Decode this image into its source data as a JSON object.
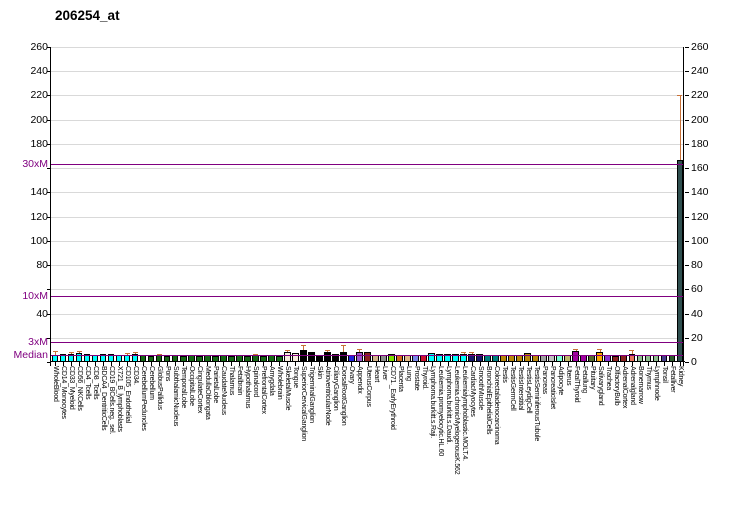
{
  "chart_data": {
    "type": "bar",
    "title": "206254_at",
    "xlabel": "",
    "ylabel": "",
    "ylim": [
      0,
      260
    ],
    "ytick_step": 20,
    "grid": true,
    "threshold_color": "#800080",
    "error_color": "#c87137",
    "thresholds": [
      {
        "label": "30xM",
        "value": 163.5
      },
      {
        "label": "10xM",
        "value": 54.5
      },
      {
        "label": "3xM",
        "value": 16.4
      },
      {
        "label": "Median",
        "value": 5.45
      }
    ],
    "y_axis_left": [
      {
        "label": "260",
        "value": 260,
        "color": "#000000"
      },
      {
        "label": "240",
        "value": 240,
        "color": "#000000"
      },
      {
        "label": "220",
        "value": 220,
        "color": "#000000"
      },
      {
        "label": "200",
        "value": 200,
        "color": "#000000"
      },
      {
        "label": "180",
        "value": 180,
        "color": "#000000"
      },
      {
        "label": "30xM",
        "value": 163.5,
        "color": "#800080"
      },
      {
        "label": "140",
        "value": 140,
        "color": "#000000"
      },
      {
        "label": "120",
        "value": 120,
        "color": "#000000"
      },
      {
        "label": "100",
        "value": 100,
        "color": "#000000"
      },
      {
        "label": "80",
        "value": 80,
        "color": "#000000"
      },
      {
        "label": "10xM",
        "value": 54.5,
        "color": "#800080"
      },
      {
        "label": "40",
        "value": 40,
        "color": "#000000"
      },
      {
        "label": "3xM",
        "value": 16.4,
        "color": "#800080"
      },
      {
        "label": "Median",
        "value": 5.45,
        "color": "#800080"
      }
    ],
    "y_axis_right": [
      0,
      20,
      40,
      60,
      80,
      100,
      120,
      140,
      160,
      180,
      200,
      220,
      240,
      260
    ],
    "points": [
      {
        "label": "WholeBlood",
        "value": 6,
        "hi": 9,
        "color": "#00ffff"
      },
      {
        "label": "CD14_Monocytes",
        "value": 7,
        "color": "#00ffff"
      },
      {
        "label": "CD33_Myeloid",
        "value": 7,
        "hi": 8.5,
        "color": "#00ffff"
      },
      {
        "label": "CD56_NKCells",
        "value": 7.5,
        "hi": 9,
        "color": "#00ffff"
      },
      {
        "label": "CD4_Tcells",
        "value": 6.5,
        "color": "#00ffff"
      },
      {
        "label": "CD8_Tcells",
        "value": 6,
        "color": "#00ffff"
      },
      {
        "label": "BDCA4_DentriticCells",
        "value": 6.5,
        "color": "#00ffff"
      },
      {
        "label": "CD19_BCells.neg._sel.",
        "value": 6.5,
        "color": "#00ffff"
      },
      {
        "label": "X721_B_lymphoblasts",
        "value": 6,
        "color": "#00ffff"
      },
      {
        "label": "CD105_Endothelial",
        "value": 6,
        "hi": 7.5,
        "color": "#00ffff"
      },
      {
        "label": "CD34.",
        "value": 7,
        "hi": 8.5,
        "color": "#00ffff"
      },
      {
        "label": "CerebellumPeduncles",
        "value": 5.5,
        "color": "#156815"
      },
      {
        "label": "Cerebellum",
        "value": 5,
        "color": "#156815"
      },
      {
        "label": "GlobusPallidus",
        "value": 5.5,
        "hi": 6.5,
        "color": "#156815"
      },
      {
        "label": "Pons",
        "value": 5,
        "color": "#156815"
      },
      {
        "label": "SubthalamicNucleus",
        "value": 5.5,
        "color": "#156815"
      },
      {
        "label": "TemporalLobe",
        "value": 5,
        "color": "#156815"
      },
      {
        "label": "OccipitalLobe",
        "value": 5.5,
        "color": "#156815"
      },
      {
        "label": "CingulateCortex",
        "value": 5,
        "color": "#156815"
      },
      {
        "label": "MedullaOblongata",
        "value": 5.5,
        "color": "#156815"
      },
      {
        "label": "ParietalLobe",
        "value": 5,
        "color": "#156815"
      },
      {
        "label": "CaudateNucleus",
        "value": 5.5,
        "color": "#156815"
      },
      {
        "label": "Thalamus",
        "value": 5,
        "color": "#156815"
      },
      {
        "label": "Fetalbrain",
        "value": 5.5,
        "color": "#156815"
      },
      {
        "label": "Hypothalamus",
        "value": 5,
        "color": "#156815"
      },
      {
        "label": "Spinalcord",
        "value": 5.5,
        "hi": 6.5,
        "color": "#156815"
      },
      {
        "label": "PrefrontalCortex",
        "value": 5,
        "color": "#156815"
      },
      {
        "label": "Amygdala",
        "value": 5.5,
        "color": "#156815"
      },
      {
        "label": "Wholebrain",
        "value": 5,
        "color": "#156815"
      },
      {
        "label": "SkeletalMuscle",
        "value": 8,
        "hi": 9.5,
        "color": "#f7ebdd"
      },
      {
        "label": "Tongue",
        "value": 7.5,
        "color": "#f7ebdd"
      },
      {
        "label": "SuperiorCervicalGanglion",
        "value": 10,
        "hi": 14,
        "color": "#000000"
      },
      {
        "label": "TrigeminalGanglion",
        "value": 8.5,
        "color": "#000000"
      },
      {
        "label": "Skin",
        "value": 6,
        "color": "#000000"
      },
      {
        "label": "AtrioventricularNode",
        "value": 8.5,
        "hi": 10,
        "color": "#000000"
      },
      {
        "label": "CiliaryGanglion",
        "value": 6.5,
        "color": "#000000"
      },
      {
        "label": "DorsalRootGanglion",
        "value": 8,
        "hi": 14,
        "color": "#000000"
      },
      {
        "label": "Ovary",
        "value": 5.5,
        "color": "#2222dd"
      },
      {
        "label": "Appendix",
        "value": 8.5,
        "hi": 11,
        "color": "#9955cc"
      },
      {
        "label": "UterusCorpus",
        "value": 8,
        "color": "#8b2222"
      },
      {
        "label": "Heart",
        "value": 6,
        "color": "#d2b48c"
      },
      {
        "label": "Liver",
        "value": 6,
        "color": "#8c8c8c"
      },
      {
        "label": "CD71._EarlyErythroid",
        "value": 6.5,
        "color": "#7fe000"
      },
      {
        "label": "Placenta",
        "value": 6,
        "color": "#d2691e"
      },
      {
        "label": "Lung",
        "value": 6,
        "color": "#deb887"
      },
      {
        "label": "Prostate",
        "value": 6,
        "color": "#7a86e8"
      },
      {
        "label": "Thyroid.",
        "value": 6,
        "color": "#cc1133"
      },
      {
        "label": "Lymphoma.burkitt.s.Raji.",
        "value": 7.5,
        "color": "#00ffff"
      },
      {
        "label": "Leukemia.promyelocytic.HL.60",
        "value": 6.5,
        "color": "#00ffff"
      },
      {
        "label": "Lymphoma.burkitt.s.Daudi.",
        "value": 6.5,
        "color": "#00ffff"
      },
      {
        "label": "Leukemia.chronicMyelogenousK.562",
        "value": 6.5,
        "color": "#00ffff"
      },
      {
        "label": "Leukemialymphoblastic.MOLT.4.",
        "value": 6.5,
        "hi": 8,
        "color": "#00ffff"
      },
      {
        "label": "CardiacMyocytes",
        "value": 7,
        "hi": 8.5,
        "color": "#16166b"
      },
      {
        "label": "SmoothMuscle",
        "value": 7,
        "color": "#16166b"
      },
      {
        "label": "BronchialEpithelialCells",
        "value": 5.5,
        "color": "#008080"
      },
      {
        "label": "Colorectaladenocarcinoma",
        "value": 5.5,
        "color": "#008080"
      },
      {
        "label": "Testis",
        "value": 6,
        "color": "#b8860b"
      },
      {
        "label": "TestisGermCell",
        "value": 6,
        "color": "#b8860b"
      },
      {
        "label": "TestisInterstitial",
        "value": 6,
        "color": "#b8860b"
      },
      {
        "label": "TestisLeydigCell",
        "value": 7.5,
        "color": "#b8860b"
      },
      {
        "label": "TestisSeminiferousTubule",
        "value": 6,
        "color": "#b8860b"
      },
      {
        "label": "Pancreas",
        "value": 5.5,
        "color": "#9e9e9e"
      },
      {
        "label": "PancreaticIslet",
        "value": 5.5,
        "color": "#c0c0c0"
      },
      {
        "label": "Adipocyte",
        "value": 5.5,
        "color": "#7fffd4"
      },
      {
        "label": "Uterus",
        "value": 5.5,
        "color": "#bdb76b"
      },
      {
        "label": "FetalThyroid",
        "value": 9,
        "hi": 11,
        "color": "#a000a0"
      },
      {
        "label": "Fetallung",
        "value": 5.5,
        "color": "#a000a0"
      },
      {
        "label": "Pituitary",
        "value": 5.5,
        "color": "#556b2f"
      },
      {
        "label": "Salivarygland",
        "value": 8,
        "hi": 10.5,
        "color": "#ffa500"
      },
      {
        "label": "Trachea",
        "value": 5.5,
        "color": "#8833cc"
      },
      {
        "label": "OlfactoryBulb",
        "value": 5,
        "color": "#8b2222"
      },
      {
        "label": "AdrenalCortex",
        "value": 6,
        "color": "#8b2222"
      },
      {
        "label": "Adrenalgland",
        "value": 7,
        "hi": 9.5,
        "color": "#e8735c"
      },
      {
        "label": "Bonemarrow",
        "value": 5.5,
        "color": "#8fbc8f"
      },
      {
        "label": "Thymus",
        "value": 5.5,
        "color": "#8fbc8f"
      },
      {
        "label": "Lymphnode",
        "value": 5.5,
        "color": "#8fbc8f"
      },
      {
        "label": "Tonsil",
        "value": 5.5,
        "color": "#483d8b"
      },
      {
        "label": "Fetalliver",
        "value": 5.5,
        "color": "#2d5a2d"
      },
      {
        "label": "Kidney",
        "value": 167,
        "hi": 220,
        "color": "#2f4f4f"
      }
    ]
  }
}
